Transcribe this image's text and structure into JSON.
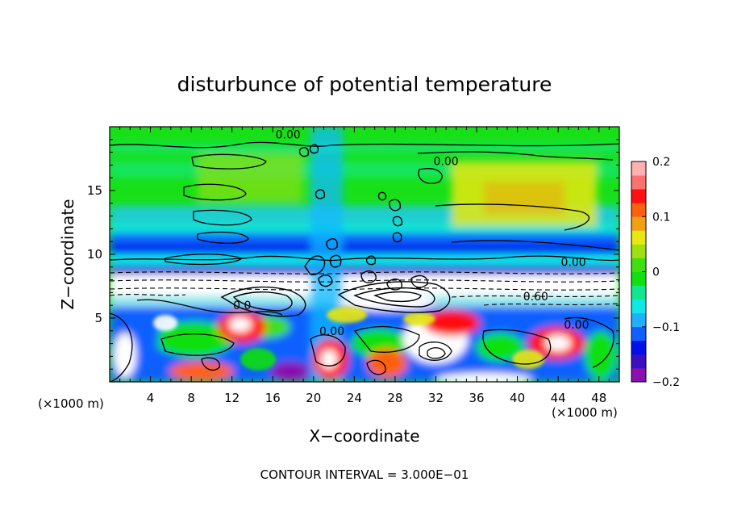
{
  "chart_data": {
    "type": "heatmap",
    "title": "disturbunce of potential temperature",
    "xlabel": "X−coordinate",
    "ylabel": "Z−coordinate",
    "x_unit_left": "(×1000 m)",
    "x_unit_right": "(×1000 m)",
    "xlim": [
      0,
      50
    ],
    "ylim": [
      0,
      20
    ],
    "x_ticks": [
      4,
      8,
      12,
      16,
      20,
      24,
      28,
      32,
      36,
      40,
      44,
      48
    ],
    "x_tick_labels": [
      "4",
      "8",
      "12",
      "16",
      "20",
      "24",
      "28",
      "32",
      "36",
      "40",
      "44",
      "48"
    ],
    "y_ticks": [
      5,
      10,
      15
    ],
    "y_tick_labels": [
      "5",
      "10",
      "15"
    ],
    "colorbar": {
      "range": [
        -0.2,
        0.2
      ],
      "ticks": [
        0.2,
        0.1,
        0,
        -0.1,
        -0.2
      ],
      "tick_labels": [
        "0.2",
        "0.1",
        "0",
        "−0.1",
        "−0.2"
      ],
      "colors": [
        "#8a10b0",
        "#3a10c0",
        "#0010e8",
        "#1060ff",
        "#20b0ff",
        "#10e8e8",
        "#10e890",
        "#10e010",
        "#40e010",
        "#a0e010",
        "#e8e810",
        "#f0a010",
        "#ff6010",
        "#ff1010",
        "#ff7070",
        "#ffb0b0"
      ]
    },
    "contour_labels": [
      {
        "text": "0.00",
        "x": 17.5,
        "z": 19.4
      },
      {
        "text": "0.00",
        "x": 33.0,
        "z": 17.3
      },
      {
        "text": "0.00",
        "x": 45.5,
        "z": 9.4
      },
      {
        "text": "0.60",
        "x": 41.8,
        "z": 6.7
      },
      {
        "text": "0.00",
        "x": 45.8,
        "z": 4.5
      },
      {
        "text": "0.0",
        "x": 13.0,
        "z": 6.0
      },
      {
        "text": "0.00",
        "x": 21.8,
        "z": 4.0
      }
    ],
    "contour_interval_text": "CONTOUR INTERVAL = 3.000E−01"
  }
}
